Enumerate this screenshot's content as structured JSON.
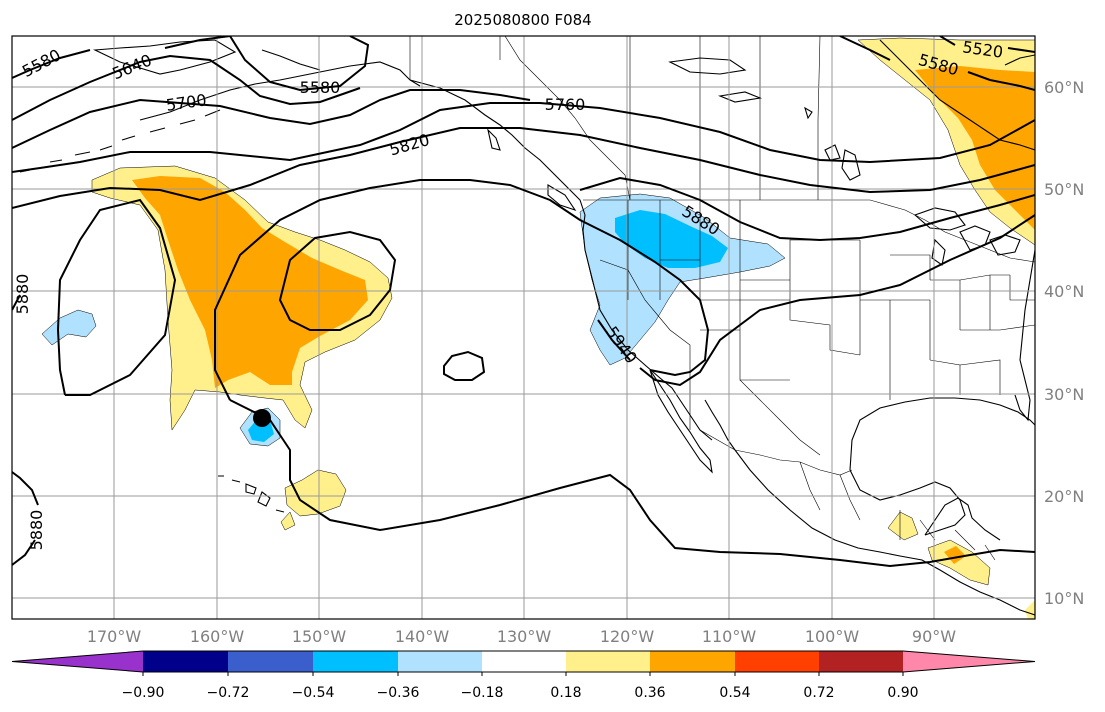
{
  "title": "2025080800 F084",
  "lon_ticks": [
    "170°W",
    "160°W",
    "150°W",
    "140°W",
    "130°W",
    "120°W",
    "110°W",
    "100°W",
    "90°W"
  ],
  "lat_ticks": [
    "60°N",
    "50°N",
    "40°N",
    "30°N",
    "20°N",
    "10°N"
  ],
  "contour_labels": [
    "5580",
    "5640",
    "5700",
    "5580",
    "5760",
    "5820",
    "5880",
    "5880",
    "5940",
    "5880",
    "5520",
    "5580"
  ],
  "colorbar": {
    "colors": [
      "#9932cc",
      "#00008b",
      "#3a5fcd",
      "#00bfff",
      "#b0e2ff",
      "#ffffff",
      "#fff08c",
      "#ffa500",
      "#ff4000",
      "#b22222",
      "#ff88aa"
    ],
    "labels": [
      "−0.90",
      "−0.72",
      "−0.54",
      "−0.36",
      "−0.18",
      "0.18",
      "0.36",
      "0.54",
      "0.72",
      "0.90"
    ]
  },
  "markers": [
    {
      "name": "storm-center",
      "lon": -155.5,
      "lat": 27.6,
      "color": "#000000"
    }
  ]
}
